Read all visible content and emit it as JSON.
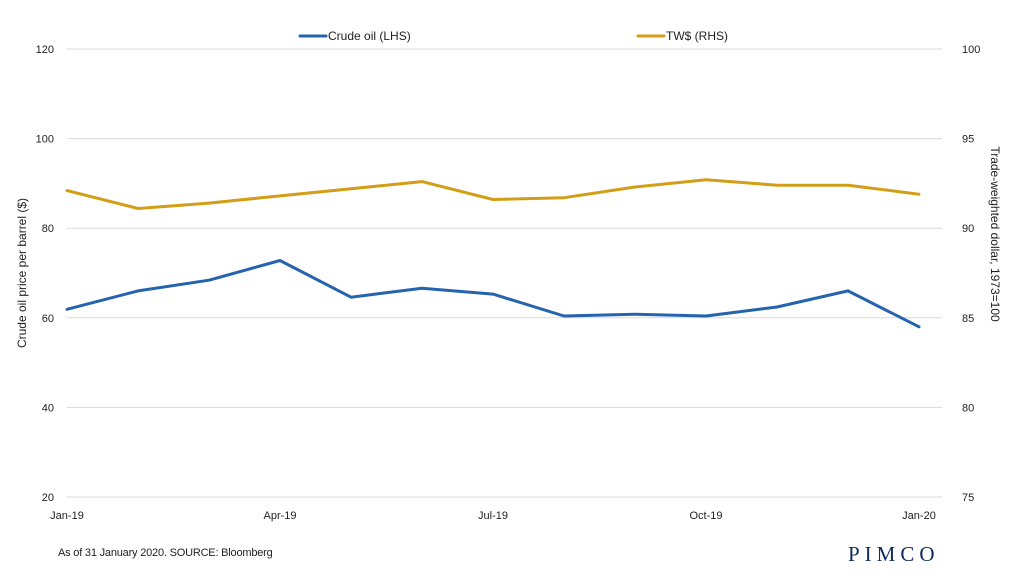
{
  "chart_data": {
    "type": "line",
    "x": [
      "Jan-19",
      "Feb-19",
      "Mar-19",
      "Apr-19",
      "May-19",
      "Jun-19",
      "Jul-19",
      "Aug-19",
      "Sep-19",
      "Oct-19",
      "Nov-19",
      "Dec-19",
      "Jan-20"
    ],
    "x_tick_labels": [
      "Jan-19",
      "Apr-19",
      "Jul-19",
      "Oct-19",
      "Jan-20"
    ],
    "series": [
      {
        "name": "Crude oil (LHS)",
        "axis": "left",
        "color": "#2563ae",
        "values": [
          61.9,
          66.0,
          68.4,
          72.8,
          64.6,
          66.6,
          65.3,
          60.4,
          60.8,
          60.4,
          62.4,
          66.0,
          58.0
        ]
      },
      {
        "name": "TW$ (RHS)",
        "axis": "right",
        "color": "#d19e16",
        "values": [
          92.1,
          91.1,
          91.4,
          91.8,
          92.2,
          92.6,
          91.6,
          91.7,
          92.3,
          92.7,
          92.4,
          92.4,
          91.9
        ]
      }
    ],
    "ylabel_left": "Crude oil price per barrel ($)",
    "ylabel_right": "Trade-weighted dollar, 1973=100",
    "ylim_left": [
      20,
      120
    ],
    "ylim_right": [
      75,
      100
    ],
    "yticks_left": [
      "20",
      "40",
      "60",
      "80",
      "100",
      "120"
    ],
    "yticks_right": [
      "75",
      "80",
      "85",
      "90",
      "95",
      "100"
    ],
    "grid": "horizontal",
    "legend_position": "top"
  },
  "footnote": "As of 31 January 2020. SOURCE: Bloomberg",
  "logo": "PIMCO"
}
